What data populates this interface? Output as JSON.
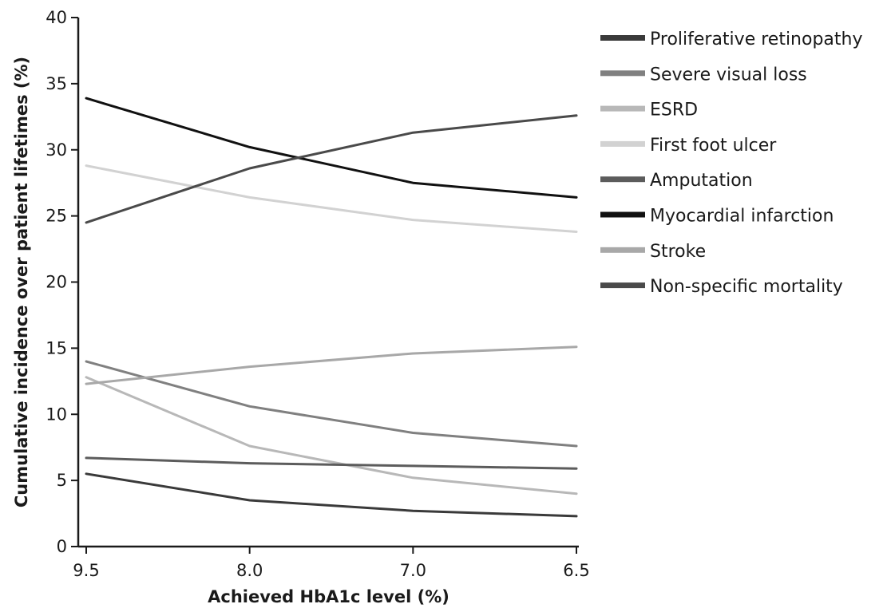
{
  "chart_data": {
    "type": "line",
    "title": "",
    "xlabel": "Achieved HbA1c level (%)",
    "ylabel": "Cumulative incidence over patient lifetimes (%)",
    "x_categories": [
      "9.5",
      "8.0",
      "7.0",
      "6.5"
    ],
    "ylim": [
      0,
      40
    ],
    "y_ticks": [
      0,
      5,
      10,
      15,
      20,
      25,
      30,
      35,
      40
    ],
    "grid": false,
    "legend_position": "right",
    "series": [
      {
        "name": "Proliferative retinopathy",
        "color": "#3a3a3a",
        "values": [
          5.5,
          3.5,
          2.7,
          2.3
        ]
      },
      {
        "name": "Severe visual loss",
        "color": "#808080",
        "values": [
          14.0,
          10.6,
          8.6,
          7.6
        ]
      },
      {
        "name": "ESRD",
        "color": "#b8b8b8",
        "values": [
          12.8,
          7.6,
          5.2,
          4.0
        ]
      },
      {
        "name": "First foot ulcer",
        "color": "#d2d2d2",
        "values": [
          28.8,
          26.4,
          24.7,
          23.8
        ]
      },
      {
        "name": "Amputation",
        "color": "#5c5c5c",
        "values": [
          6.7,
          6.3,
          6.1,
          5.9
        ]
      },
      {
        "name": "Myocardial infarction",
        "color": "#111111",
        "values": [
          33.9,
          30.2,
          27.5,
          26.4
        ]
      },
      {
        "name": "Stroke",
        "color": "#a8a8a8",
        "values": [
          12.3,
          13.6,
          14.6,
          15.1
        ]
      },
      {
        "name": "Non-specific mortality",
        "color": "#4a4a4a",
        "values": [
          24.5,
          28.6,
          31.3,
          32.6
        ]
      }
    ]
  }
}
